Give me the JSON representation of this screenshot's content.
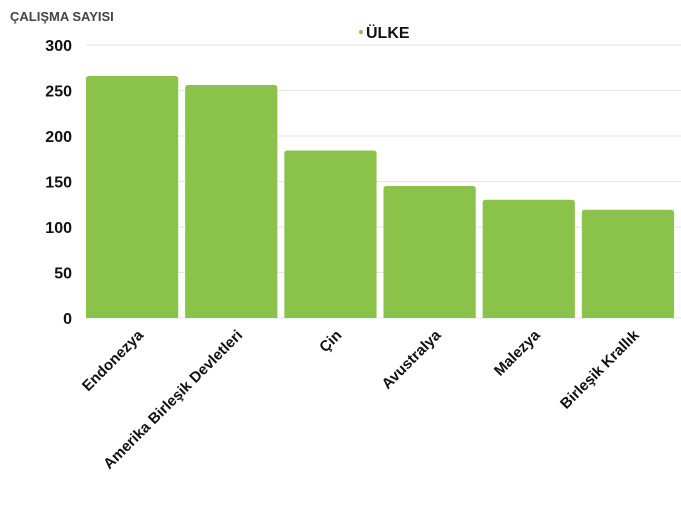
{
  "chart_data": {
    "type": "bar",
    "ylabel": "ÇALIŞMA SAYISI",
    "legend": {
      "label": "ÜLKE",
      "position": "top-center"
    },
    "categories": [
      "Endonezya",
      "Amerika Birleşik Devletleri",
      "Çin",
      "Avustralya",
      "Malezya",
      "Birleşik Krallık"
    ],
    "series": [
      {
        "name": "ÜLKE",
        "values": [
          266,
          256,
          184,
          145,
          130,
          119
        ]
      }
    ],
    "ylim": [
      0,
      300
    ],
    "yticks": [
      0,
      50,
      100,
      150,
      200,
      250,
      300
    ],
    "grid": true,
    "colors": {
      "bar": "#8bc34a",
      "grid": "#e6e6e6",
      "text": "#111111"
    }
  }
}
